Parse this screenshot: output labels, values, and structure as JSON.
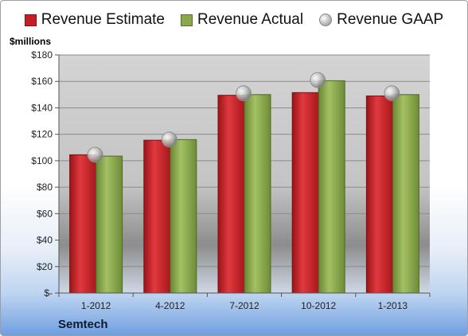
{
  "chart_data": {
    "type": "bar",
    "categories": [
      "1-2012",
      "4-2012",
      "7-2012",
      "10-2012",
      "1-2013"
    ],
    "series": [
      {
        "name": "Revenue Estimate",
        "values": [
          104.5,
          115.5,
          149.5,
          151.5,
          149.0
        ]
      },
      {
        "name": "Revenue Actual",
        "values": [
          103.5,
          116.0,
          150.0,
          160.5,
          150.0
        ]
      },
      {
        "name": "Revenue GAAP",
        "values": [
          104.5,
          116.0,
          151.0,
          161.0,
          151.0
        ]
      }
    ],
    "ylabel": "$millions",
    "ylim": [
      0,
      180
    ],
    "yticks": [
      0,
      20,
      40,
      60,
      80,
      100,
      120,
      140,
      160,
      180
    ],
    "ytick_labels": [
      "$-",
      "$20",
      "$40",
      "$60",
      "$80",
      "$100",
      "$120",
      "$140",
      "$160",
      "$180"
    ],
    "grid": true,
    "legend": "top",
    "colors": {
      "estimate": "#c51f25",
      "actual": "#8aa84b",
      "gaap": "#b0b0b0"
    }
  },
  "company": "Semtech"
}
